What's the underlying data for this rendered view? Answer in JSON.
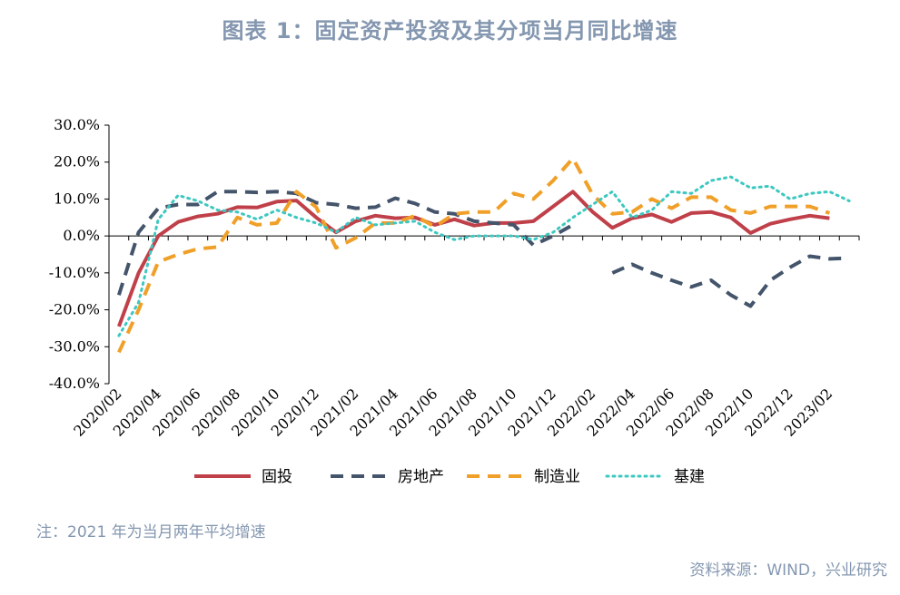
{
  "header": {
    "title": "图表 1：固定资产投资及其分项当月同比增速"
  },
  "footer": {
    "note": "注：2021 年为当月两年平均增速",
    "source": "资料来源：WIND，兴业研究"
  },
  "chart_data": {
    "type": "line",
    "ylim": [
      -40,
      30
    ],
    "yticks": [
      30,
      20,
      10,
      0,
      -10,
      -20,
      -30,
      -40
    ],
    "ytick_labels": [
      "30.0%",
      "20.0%",
      "10.0%",
      "0.0%",
      "-10.0%",
      "-20.0%",
      "-30.0%",
      "-40.0%"
    ],
    "x": [
      "2020/02",
      "2020/03",
      "2020/04",
      "2020/05",
      "2020/06",
      "2020/07",
      "2020/08",
      "2020/09",
      "2020/10",
      "2020/11",
      "2020/12",
      "2021/01",
      "2021/02",
      "2021/03",
      "2021/04",
      "2021/05",
      "2021/06",
      "2021/07",
      "2021/08",
      "2021/09",
      "2021/10",
      "2021/11",
      "2021/12",
      "2022/01",
      "2022/02",
      "2022/03",
      "2022/04",
      "2022/05",
      "2022/06",
      "2022/07",
      "2022/08",
      "2022/09",
      "2022/10",
      "2022/11",
      "2022/12",
      "2023/01",
      "2023/02",
      "2023/03"
    ],
    "xtick_labels": [
      "2020/02",
      "2020/04",
      "2020/06",
      "2020/08",
      "2020/10",
      "2020/12",
      "2021/02",
      "2021/04",
      "2021/06",
      "2021/08",
      "2021/10",
      "2021/12",
      "2022/02",
      "2022/04",
      "2022/06",
      "2022/08",
      "2022/10",
      "2022/12",
      "2023/02"
    ],
    "legend_position": "bottom",
    "series": [
      {
        "name": "固投",
        "style": "solid",
        "color": "#c0404a",
        "values": [
          -24.5,
          -10,
          0,
          3.8,
          5.3,
          6,
          7.8,
          7.7,
          9.3,
          9.6,
          5,
          1,
          4,
          5.5,
          4.8,
          5,
          3,
          4.5,
          2.8,
          3.5,
          3.5,
          4,
          8,
          12,
          6.5,
          2.2,
          4.8,
          5.8,
          3.8,
          6.2,
          6.5,
          5,
          0.8,
          3.3,
          4.5,
          5.5,
          4.8,
          null
        ]
      },
      {
        "name": "房地产",
        "style": "dashed",
        "color": "#44546a",
        "values": [
          -16,
          1,
          7.5,
          8.5,
          8.5,
          12,
          12,
          11.8,
          12,
          11.5,
          9,
          8.5,
          7.5,
          7.8,
          10.2,
          8.8,
          6.5,
          6,
          4,
          3.5,
          3,
          -2.5,
          0,
          3,
          null,
          -10,
          -7.7,
          -10,
          -12,
          -13.8,
          -12,
          -16,
          -19,
          -12,
          -8.5,
          -5.5,
          -6.2,
          -6
        ]
      },
      {
        "name": "制造业",
        "style": "dashed",
        "color": "#f0a028",
        "values": [
          -31.5,
          -20,
          -7,
          -5,
          -3.5,
          -3,
          5,
          3,
          3.5,
          12,
          7.8,
          -3.2,
          -0.5,
          3.5,
          3.5,
          5.5,
          2.5,
          6,
          6.5,
          6.5,
          11.5,
          10,
          15,
          21,
          11.2,
          6,
          6.5,
          10,
          7.5,
          10.5,
          10.5,
          7,
          6.2,
          8,
          8,
          8,
          6.2,
          null
        ]
      },
      {
        "name": "基建",
        "style": "dotted",
        "color": "#3cc8c0",
        "values": [
          -27,
          -18,
          4.5,
          11,
          9.5,
          7,
          6.5,
          4.5,
          7,
          5,
          3.5,
          1,
          5,
          3,
          3.5,
          4,
          1,
          -1,
          0,
          0,
          0,
          -1,
          1,
          5,
          8.5,
          12,
          5,
          7,
          12,
          11.5,
          15,
          16,
          13,
          13.5,
          10,
          11.5,
          12,
          9.5
        ]
      }
    ]
  }
}
